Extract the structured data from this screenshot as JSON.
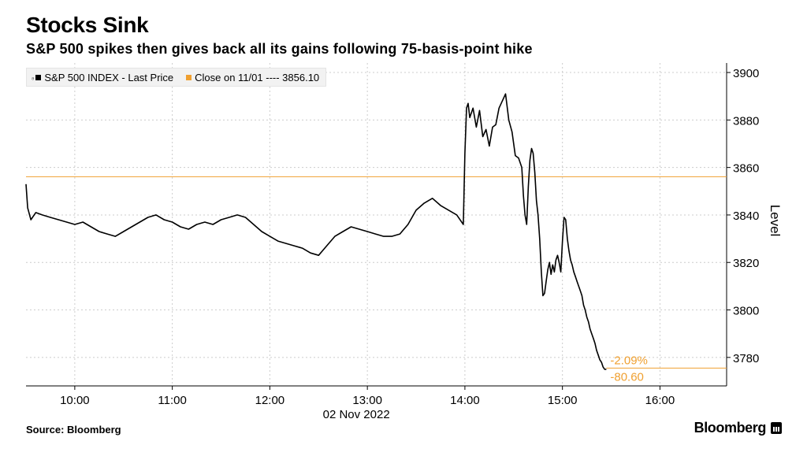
{
  "title": "Stocks Sink",
  "subtitle": "S&P 500 spikes then gives back all its gains following 75-basis-point hike",
  "legend": {
    "series_label": "S&P 500 INDEX - Last Price",
    "close_label": "Close on 11/01 ---- 3856.10"
  },
  "annotation": {
    "pct": "-2.09%",
    "pts": "-80.60"
  },
  "source": "Source: Bloomberg",
  "brand": "Bloomberg",
  "colors": {
    "price_line": "#000000",
    "close_line": "#f0a030",
    "grid": "#cccccc",
    "annotation": "#f0a030"
  },
  "chart_data": {
    "type": "line",
    "title": "Stocks Sink",
    "subtitle": "S&P 500 spikes then gives back all its gains following 75-basis-point hike",
    "xlabel": "02 Nov 2022",
    "ylabel": "Level",
    "x_ticks": [
      "10:00",
      "11:00",
      "12:00",
      "13:00",
      "14:00",
      "15:00",
      "16:00"
    ],
    "y_ticks": [
      3780,
      3800,
      3820,
      3840,
      3860,
      3880,
      3900
    ],
    "xlim": [
      "09:30",
      "16:41"
    ],
    "ylim": [
      3768,
      3904
    ],
    "grid": true,
    "legend_position": "top-left",
    "reference_line": {
      "name": "Close on 11/01",
      "value": 3856.1
    },
    "last_value_line": 3775.5,
    "series": [
      {
        "name": "S&P 500 INDEX - Last Price",
        "x": [
          "09:30",
          "09:31",
          "09:33",
          "09:36",
          "09:40",
          "09:45",
          "09:50",
          "09:55",
          "10:00",
          "10:05",
          "10:10",
          "10:15",
          "10:20",
          "10:25",
          "10:30",
          "10:35",
          "10:40",
          "10:45",
          "10:50",
          "10:55",
          "11:00",
          "11:05",
          "11:10",
          "11:15",
          "11:20",
          "11:25",
          "11:30",
          "11:35",
          "11:40",
          "11:45",
          "11:50",
          "11:55",
          "12:00",
          "12:05",
          "12:10",
          "12:15",
          "12:20",
          "12:25",
          "12:30",
          "12:35",
          "12:40",
          "12:45",
          "12:50",
          "12:55",
          "13:00",
          "13:05",
          "13:10",
          "13:15",
          "13:20",
          "13:25",
          "13:30",
          "13:35",
          "13:40",
          "13:45",
          "13:50",
          "13:55",
          "13:59",
          "14:00",
          "14:01",
          "14:02",
          "14:03",
          "14:05",
          "14:07",
          "14:09",
          "14:11",
          "14:13",
          "14:15",
          "14:17",
          "14:19",
          "14:21",
          "14:23",
          "14:25",
          "14:27",
          "14:29",
          "14:31",
          "14:33",
          "14:35",
          "14:36",
          "14:37",
          "14:38",
          "14:39",
          "14:40",
          "14:41",
          "14:42",
          "14:43",
          "14:44",
          "14:45",
          "14:46",
          "14:47",
          "14:48",
          "14:49",
          "14:50",
          "14:51",
          "14:52",
          "14:53",
          "14:54",
          "14:55",
          "14:56",
          "14:57",
          "14:58",
          "14:59",
          "15:00",
          "15:01",
          "15:02",
          "15:03",
          "15:04",
          "15:05",
          "15:06",
          "15:07",
          "15:08",
          "15:09",
          "15:10",
          "15:11",
          "15:12",
          "15:13",
          "15:14",
          "15:15",
          "15:16",
          "15:17",
          "15:18",
          "15:19",
          "15:20",
          "15:21",
          "15:22",
          "15:23",
          "15:24",
          "15:25",
          "15:26",
          "15:27"
        ],
        "values": [
          3853,
          3843,
          3838,
          3841,
          3840,
          3839,
          3838,
          3837,
          3836,
          3837,
          3835,
          3833,
          3832,
          3831,
          3833,
          3835,
          3837,
          3839,
          3840,
          3838,
          3837,
          3835,
          3834,
          3836,
          3837,
          3836,
          3838,
          3839,
          3840,
          3839,
          3836,
          3833,
          3831,
          3829,
          3828,
          3827,
          3826,
          3824,
          3823,
          3827,
          3831,
          3833,
          3835,
          3834,
          3833,
          3832,
          3831,
          3831,
          3832,
          3836,
          3842,
          3845,
          3847,
          3844,
          3842,
          3840,
          3836,
          3866,
          3885,
          3887,
          3881,
          3885,
          3877,
          3884,
          3873,
          3876,
          3869,
          3877,
          3878,
          3885,
          3888,
          3891,
          3880,
          3875,
          3865,
          3864,
          3860,
          3848,
          3840,
          3836,
          3852,
          3863,
          3868,
          3866,
          3858,
          3846,
          3840,
          3830,
          3816,
          3806,
          3807,
          3812,
          3817,
          3820,
          3815,
          3819,
          3816,
          3821,
          3823,
          3820,
          3816,
          3829,
          3839,
          3838,
          3830,
          3825,
          3821,
          3819,
          3816,
          3814,
          3812,
          3810,
          3808,
          3806,
          3802,
          3800,
          3797,
          3795,
          3792,
          3790,
          3788,
          3786,
          3783,
          3781,
          3779,
          3778,
          3776,
          3775,
          3775
        ]
      }
    ]
  }
}
